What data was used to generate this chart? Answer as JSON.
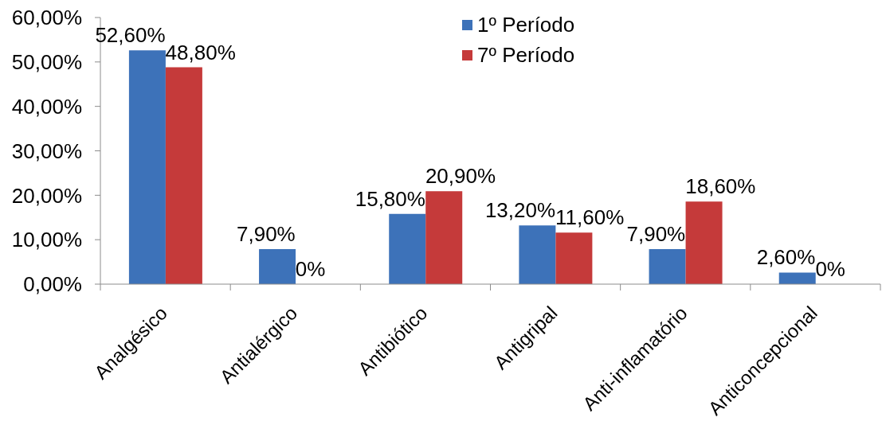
{
  "chart_data": {
    "type": "bar",
    "categories": [
      "Analgésico",
      "Antialérgico",
      "Antibiótico",
      "Antigripal",
      "Anti-inflamatório",
      "Anticoncepcional"
    ],
    "series": [
      {
        "name": "1º Período",
        "color": "#3d72b9",
        "values": [
          52.6,
          7.9,
          15.8,
          13.2,
          7.9,
          2.6
        ],
        "value_labels": [
          "52,60%",
          "7,90%",
          "15,80%",
          "13,20%",
          "7,90%",
          "2,60%"
        ]
      },
      {
        "name": "7º Período",
        "color": "#c53a3a",
        "values": [
          48.8,
          0,
          20.9,
          11.6,
          18.6,
          0
        ],
        "value_labels": [
          "48,80%",
          "0%",
          "20,90%",
          "11,60%",
          "18,60%",
          "0%"
        ]
      }
    ],
    "ylim": [
      0,
      60
    ],
    "yticks": [
      {
        "value": 0,
        "label": "0,00%"
      },
      {
        "value": 10,
        "label": "10,00%"
      },
      {
        "value": 20,
        "label": "20,00%"
      },
      {
        "value": 30,
        "label": "30,00%"
      },
      {
        "value": 40,
        "label": "40,00%"
      },
      {
        "value": 50,
        "label": "50,00%"
      },
      {
        "value": 60,
        "label": "60,00%"
      }
    ],
    "grid": false,
    "legend": "top"
  }
}
